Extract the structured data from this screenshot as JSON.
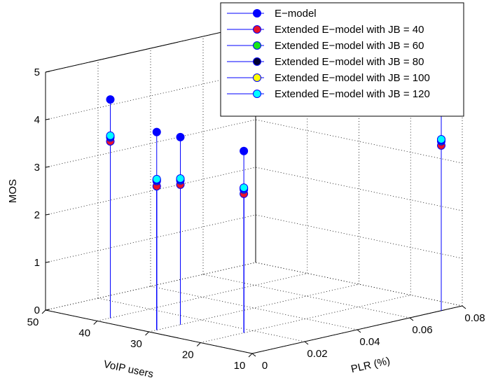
{
  "chart_data": {
    "type": "stem3d",
    "title": "",
    "axes": {
      "x": {
        "label": "VoIP users",
        "range": [
          10,
          50
        ],
        "ticks": [
          10,
          20,
          30,
          40,
          50
        ]
      },
      "y": {
        "label": "PLR (%)",
        "range": [
          0,
          0.08
        ],
        "ticks": [
          "0",
          "0.02",
          "0.04",
          "0.06",
          "0.08"
        ]
      },
      "z": {
        "label": "MOS",
        "range": [
          0,
          5
        ],
        "ticks": [
          0,
          1,
          2,
          3,
          4,
          5
        ]
      }
    },
    "grid": true,
    "legend_position": "top-right",
    "series": [
      {
        "name": "E−model",
        "color": "#0000ff"
      },
      {
        "name": "Extended E−model with JB = 40",
        "color": "#e8132b"
      },
      {
        "name": "Extended E−model with JB = 60",
        "color": "#19e619"
      },
      {
        "name": "Extended E−model with JB = 80",
        "color": "#000033"
      },
      {
        "name": "Extended E−model with JB = 100",
        "color": "#ffff00"
      },
      {
        "name": "Extended E−model with JB = 120",
        "color": "#00ffff"
      }
    ],
    "points": [
      {
        "users": 30,
        "plr": 0.003,
        "mos": [
          4.16,
          3.02,
          3.13,
          3.15,
          3.16,
          3.17
        ]
      },
      {
        "users": 40,
        "plr": 0.005,
        "mos": [
          4.59,
          3.71,
          3.79,
          3.81,
          3.82,
          3.83
        ]
      },
      {
        "users": 30,
        "plr": 0.012,
        "mos": [
          3.94,
          2.94,
          3.03,
          3.05,
          3.06,
          3.07
        ]
      },
      {
        "users": 20,
        "plr": 0.0165,
        "mos": [
          3.82,
          2.92,
          3.01,
          3.03,
          3.04,
          3.05
        ]
      },
      {
        "users": 10,
        "plr": 0.072,
        "mos": [
          4.34,
          3.47,
          3.56,
          3.58,
          3.59,
          3.6
        ]
      }
    ]
  }
}
